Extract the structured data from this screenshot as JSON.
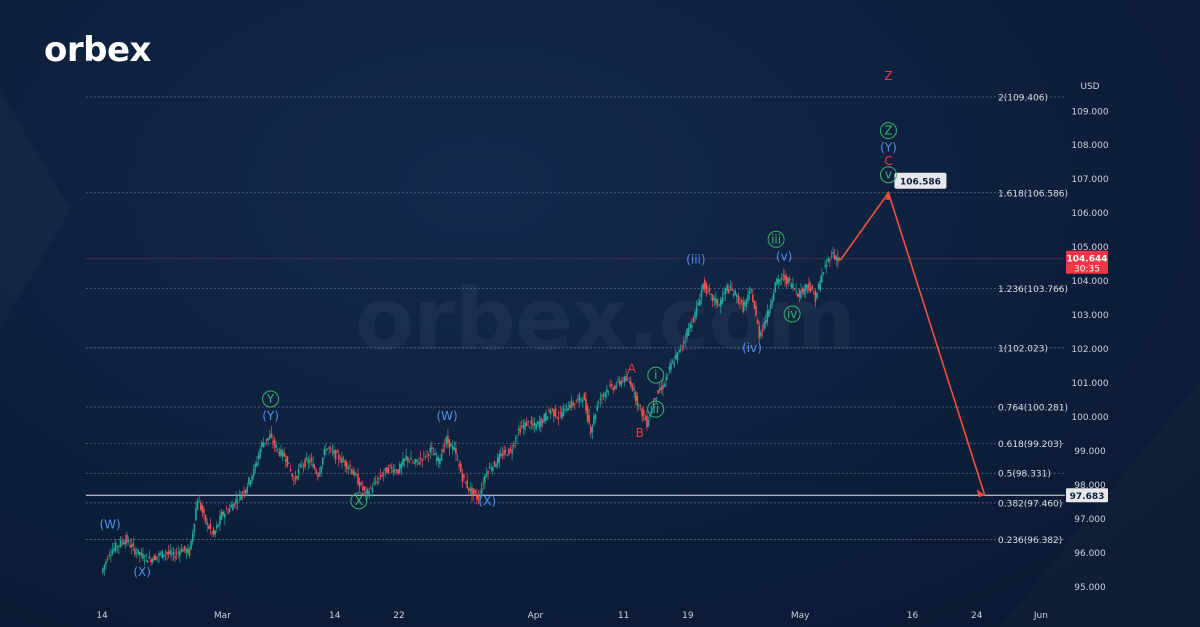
{
  "brand": {
    "logo_text": "orbex",
    "watermark_text": "orbex.com"
  },
  "chart_data": {
    "type": "line",
    "currency_label": "USD",
    "ylim": [
      94.6,
      110.2
    ],
    "price_ticks": [
      "109.000",
      "108.000",
      "107.000",
      "106.000",
      "105.000",
      "104.000",
      "103.000",
      "102.000",
      "101.000",
      "100.000",
      "99.000",
      "98.000",
      "97.000",
      "96.000",
      "95.000"
    ],
    "price_tick_values": [
      109,
      108,
      107,
      106,
      105,
      104,
      103,
      102,
      101,
      100,
      99,
      98,
      97,
      96,
      95
    ],
    "x_ticks": [
      "14",
      "Mar",
      "14",
      "22",
      "Apr",
      "11",
      "19",
      "May",
      "16",
      "24",
      "Jun"
    ],
    "x_tick_days": [
      0,
      15,
      29,
      37,
      54,
      65,
      73,
      87,
      101,
      109,
      117
    ],
    "fib_levels": [
      {
        "label": "2(109.406)",
        "value": 109.406
      },
      {
        "label": "1.618(106.586)",
        "value": 106.586
      },
      {
        "label": "1.236(103.766)",
        "value": 103.766
      },
      {
        "label": "1(102.023)",
        "value": 102.023
      },
      {
        "label": "0.764(100.281)",
        "value": 100.281
      },
      {
        "label": "0.618(99.203)",
        "value": 99.203
      },
      {
        "label": "0.5(98.331)",
        "value": 98.331
      },
      {
        "label": "0.382(97.460)",
        "value": 97.46
      },
      {
        "label": "0.236(96.382)",
        "value": 96.382
      }
    ],
    "support_level": {
      "label": "97.683",
      "value": 97.683
    },
    "current_price": {
      "label": "104.644",
      "countdown": "30:35",
      "value": 104.644
    },
    "target_callout": {
      "label": "106.586",
      "value": 106.586
    },
    "price_series": [
      [
        0,
        95.4
      ],
      [
        1,
        96.0
      ],
      [
        2,
        96.2
      ],
      [
        3,
        96.4
      ],
      [
        4,
        96.1
      ],
      [
        5,
        95.9
      ],
      [
        6,
        95.8
      ],
      [
        7,
        95.9
      ],
      [
        8,
        96.0
      ],
      [
        9,
        95.9
      ],
      [
        10,
        96.1
      ],
      [
        11,
        96.0
      ],
      [
        12,
        97.6
      ],
      [
        13,
        96.9
      ],
      [
        14,
        96.5
      ],
      [
        15,
        97.1
      ],
      [
        16,
        97.3
      ],
      [
        17,
        97.6
      ],
      [
        18,
        97.9
      ],
      [
        19,
        98.4
      ],
      [
        20,
        99.2
      ],
      [
        21,
        99.4
      ],
      [
        22,
        99.0
      ],
      [
        23,
        98.8
      ],
      [
        24,
        98.1
      ],
      [
        25,
        98.6
      ],
      [
        26,
        98.7
      ],
      [
        27,
        98.3
      ],
      [
        28,
        99.1
      ],
      [
        29,
        98.9
      ],
      [
        30,
        98.7
      ],
      [
        31,
        98.5
      ],
      [
        32,
        98.1
      ],
      [
        33,
        97.7
      ],
      [
        34,
        98.0
      ],
      [
        35,
        98.3
      ],
      [
        36,
        98.5
      ],
      [
        37,
        98.4
      ],
      [
        38,
        98.8
      ],
      [
        39,
        98.6
      ],
      [
        40,
        98.8
      ],
      [
        41,
        99.0
      ],
      [
        42,
        98.7
      ],
      [
        43,
        99.3
      ],
      [
        44,
        99.0
      ],
      [
        45,
        98.2
      ],
      [
        46,
        97.8
      ],
      [
        47,
        97.6
      ],
      [
        48,
        98.4
      ],
      [
        49,
        98.6
      ],
      [
        50,
        98.9
      ],
      [
        51,
        99.0
      ],
      [
        52,
        99.6
      ],
      [
        53,
        99.8
      ],
      [
        54,
        99.7
      ],
      [
        55,
        99.9
      ],
      [
        56,
        100.2
      ],
      [
        57,
        100.0
      ],
      [
        58,
        100.3
      ],
      [
        59,
        100.4
      ],
      [
        60,
        100.6
      ],
      [
        61,
        99.6
      ],
      [
        62,
        100.5
      ],
      [
        63,
        100.8
      ],
      [
        64,
        100.9
      ],
      [
        65,
        101.1
      ],
      [
        66,
        101.0
      ],
      [
        67,
        100.3
      ],
      [
        68,
        99.8
      ],
      [
        69,
        100.6
      ],
      [
        70,
        100.9
      ],
      [
        71,
        101.5
      ],
      [
        72,
        101.9
      ],
      [
        73,
        102.5
      ],
      [
        74,
        103.0
      ],
      [
        75,
        103.9
      ],
      [
        76,
        103.5
      ],
      [
        77,
        103.3
      ],
      [
        78,
        103.8
      ],
      [
        79,
        103.6
      ],
      [
        80,
        103.2
      ],
      [
        81,
        103.7
      ],
      [
        82,
        102.4
      ],
      [
        83,
        103.0
      ],
      [
        84,
        103.9
      ],
      [
        85,
        104.1
      ],
      [
        86,
        103.9
      ],
      [
        87,
        103.6
      ],
      [
        88,
        103.9
      ],
      [
        89,
        103.5
      ],
      [
        90,
        104.3
      ],
      [
        91,
        104.8
      ],
      [
        92,
        104.6
      ]
    ],
    "projection": [
      [
        92,
        104.6
      ],
      [
        98,
        106.586
      ],
      [
        110,
        97.683
      ]
    ],
    "wave_labels": [
      {
        "text": "(W)",
        "day": 1,
        "price": 96.7,
        "color": "blue",
        "circle": false
      },
      {
        "text": "(X)",
        "day": 5,
        "price": 95.3,
        "color": "blue",
        "circle": false
      },
      {
        "text": "Y",
        "day": 21,
        "price": 100.4,
        "color": "green",
        "circle": true
      },
      {
        "text": "(Y)",
        "day": 21,
        "price": 99.9,
        "color": "blue",
        "circle": false
      },
      {
        "text": "X",
        "day": 32,
        "price": 97.4,
        "color": "green",
        "circle": true
      },
      {
        "text": "(W)",
        "day": 43,
        "price": 99.9,
        "color": "blue",
        "circle": false
      },
      {
        "text": "(X)",
        "day": 48,
        "price": 97.4,
        "color": "blue",
        "circle": false
      },
      {
        "text": "A",
        "day": 66,
        "price": 101.3,
        "color": "red",
        "circle": false
      },
      {
        "text": "i",
        "day": 69,
        "price": 101.1,
        "color": "green",
        "circle": true
      },
      {
        "text": "B",
        "day": 67,
        "price": 99.4,
        "color": "red",
        "circle": false
      },
      {
        "text": "ii",
        "day": 69,
        "price": 100.1,
        "color": "green",
        "circle": true
      },
      {
        "text": "(iii)",
        "day": 74,
        "price": 104.5,
        "color": "blue",
        "circle": false
      },
      {
        "text": "(iv)",
        "day": 81,
        "price": 101.9,
        "color": "blue",
        "circle": false
      },
      {
        "text": "(v)",
        "day": 85,
        "price": 104.6,
        "color": "blue",
        "circle": false
      },
      {
        "text": "iii",
        "day": 84,
        "price": 105.1,
        "color": "green",
        "circle": true
      },
      {
        "text": "iv",
        "day": 86,
        "price": 102.9,
        "color": "green",
        "circle": true
      },
      {
        "text": "Z",
        "day": 98,
        "price": 109.9,
        "color": "red",
        "circle": false
      },
      {
        "text": "Z",
        "day": 98,
        "price": 108.3,
        "color": "green",
        "circle": true
      },
      {
        "text": "(Y)",
        "day": 98,
        "price": 107.8,
        "color": "blue",
        "circle": false
      },
      {
        "text": "C",
        "day": 98,
        "price": 107.4,
        "color": "red",
        "circle": false
      },
      {
        "text": "v",
        "day": 98,
        "price": 107.0,
        "color": "green",
        "circle": true
      }
    ],
    "colors": {
      "background": "#0d1f3b",
      "grid": "#2e4466",
      "candle_up": "#26a69a",
      "candle_down": "#ef5350",
      "projection": "#f0503c",
      "wave_blue": "#4d8ff0",
      "wave_green": "#35b56a",
      "wave_red": "#f23645",
      "price_tag": "#f23645",
      "support_tag": "#e6e8ec"
    }
  }
}
